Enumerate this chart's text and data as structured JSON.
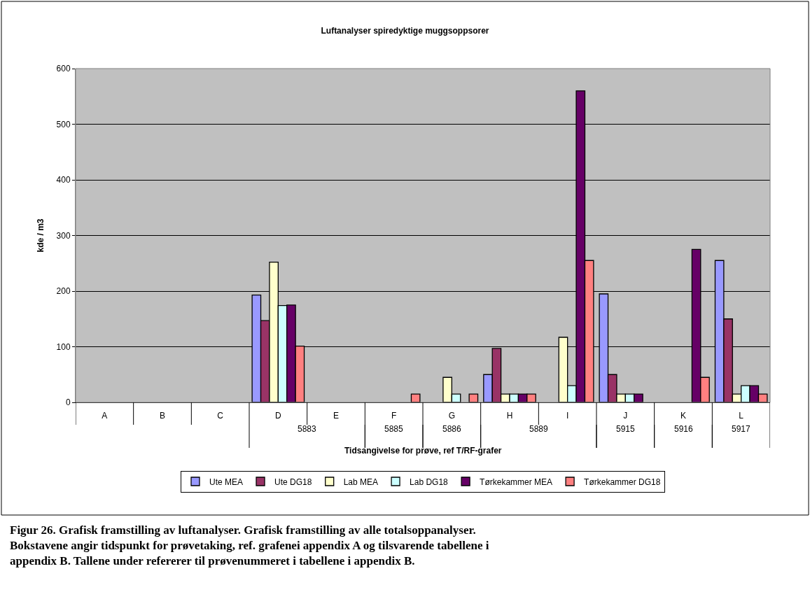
{
  "chart_data": {
    "type": "bar",
    "title": "Luftanalyser spiredyktige muggsoppsorer",
    "xlabel": "Tidsangivelse for prøve, ref T/RF-grafer",
    "ylabel": "kde / m3",
    "categories": [
      "A",
      "B",
      "C",
      "D",
      "E",
      "F",
      "G",
      "H",
      "I",
      "J",
      "K",
      "L"
    ],
    "series": [
      {
        "name": "Ute MEA",
        "color": "#9999ff",
        "values": [
          null,
          null,
          null,
          193,
          null,
          null,
          null,
          50,
          null,
          195,
          null,
          255
        ]
      },
      {
        "name": "Ute DG18",
        "color": "#993366",
        "values": [
          null,
          null,
          null,
          147,
          null,
          null,
          null,
          97,
          null,
          50,
          null,
          150
        ]
      },
      {
        "name": "Lab MEA",
        "color": "#ffffcc",
        "values": [
          null,
          null,
          null,
          252,
          null,
          null,
          45,
          15,
          117,
          15,
          null,
          15
        ]
      },
      {
        "name": "Lab DG18",
        "color": "#ccffff",
        "values": [
          null,
          null,
          null,
          174,
          null,
          null,
          15,
          15,
          30,
          15,
          null,
          30
        ]
      },
      {
        "name": "Tørkekammer MEA",
        "color": "#660066",
        "values": [
          null,
          null,
          null,
          175,
          null,
          null,
          null,
          15,
          560,
          15,
          275,
          30
        ]
      },
      {
        "name": "Tørkekammer DG18",
        "color": "#ff8080",
        "values": [
          null,
          null,
          null,
          101,
          null,
          15,
          15,
          15,
          255,
          null,
          45,
          15
        ]
      }
    ],
    "ylim": [
      0,
      600
    ],
    "yticks": [
      0,
      100,
      200,
      300,
      400,
      500,
      600
    ],
    "grid": "y",
    "legend": "bottom",
    "annotations": [
      "5883",
      "5885",
      "5886",
      "5889",
      "5915",
      "5916",
      "5917",
      "Figur 26. Grafisk framstilling av luftanalyser. Grafisk framstilling av alle totalsoppanalyser. Bokstavene angir tidspunkt for prøvetaking, ref. grafenei appendix A og tilsvarende tabellene i appendix B. Tallene under refererer til prøvenummeret i tabellene i appendix B."
    ]
  }
}
